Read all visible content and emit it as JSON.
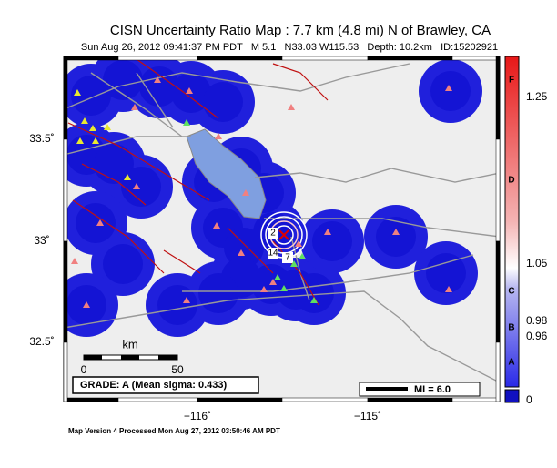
{
  "header": {
    "title": "CISN Uncertainty Ratio Map : 7.7 km (4.8 mi) N of Brawley, CA",
    "subtitle": "Sun Aug 26, 2012 09:41:37 PM PDT   M 5.1   N33.03 W115.53   Depth: 10.2km   ID:15202921"
  },
  "map": {
    "lat_labels": [
      "33.5˚",
      "33˚",
      "32.5˚"
    ],
    "lon_labels": [
      "−116˚",
      "−115˚"
    ],
    "scale": {
      "unit": "km",
      "labels": [
        "0",
        "50"
      ]
    },
    "grade": "GRADE: A (Mean sigma: 0.433)",
    "mi": "MI = 6.0",
    "contour_labels": [
      "2",
      "14",
      "7"
    ]
  },
  "colorbar": {
    "letters": [
      "F",
      "D",
      "C",
      "B",
      "A"
    ],
    "values": [
      "1.25",
      "1.05",
      "0.98",
      "0.96",
      "0"
    ]
  },
  "footer": "Map Version 4 Processed Mon Aug 27, 2012 03:50:46 AM PDT"
}
